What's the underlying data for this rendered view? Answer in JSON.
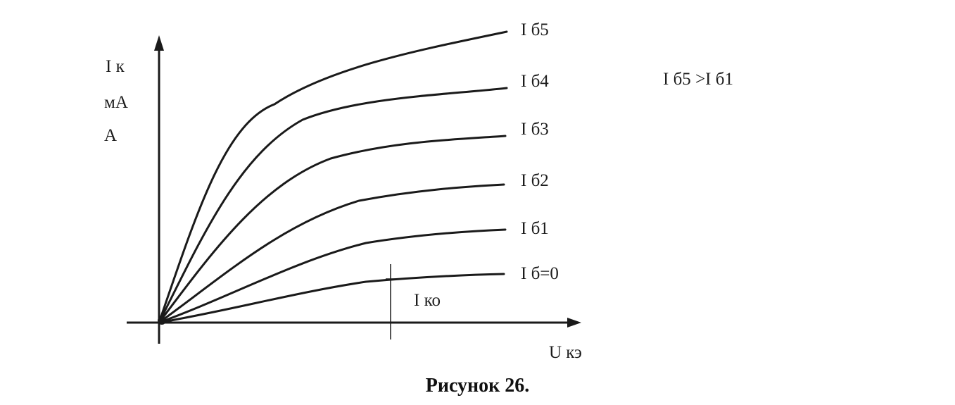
{
  "figure": {
    "y_axis_label_lines": [
      "I к",
      "мА",
      "А"
    ],
    "x_axis_label": "U кэ",
    "marker_label": "I ко",
    "relation_note": "I б5 >I б1",
    "caption": "Рисунок 26."
  },
  "curves": [
    {
      "label": "I б5"
    },
    {
      "label": "I б4"
    },
    {
      "label": "I б3"
    },
    {
      "label": "I б2"
    },
    {
      "label": "I б1"
    },
    {
      "label": "I б=0"
    }
  ],
  "colors": {
    "ink": "#1a1a1a",
    "background": "#ffffff"
  }
}
